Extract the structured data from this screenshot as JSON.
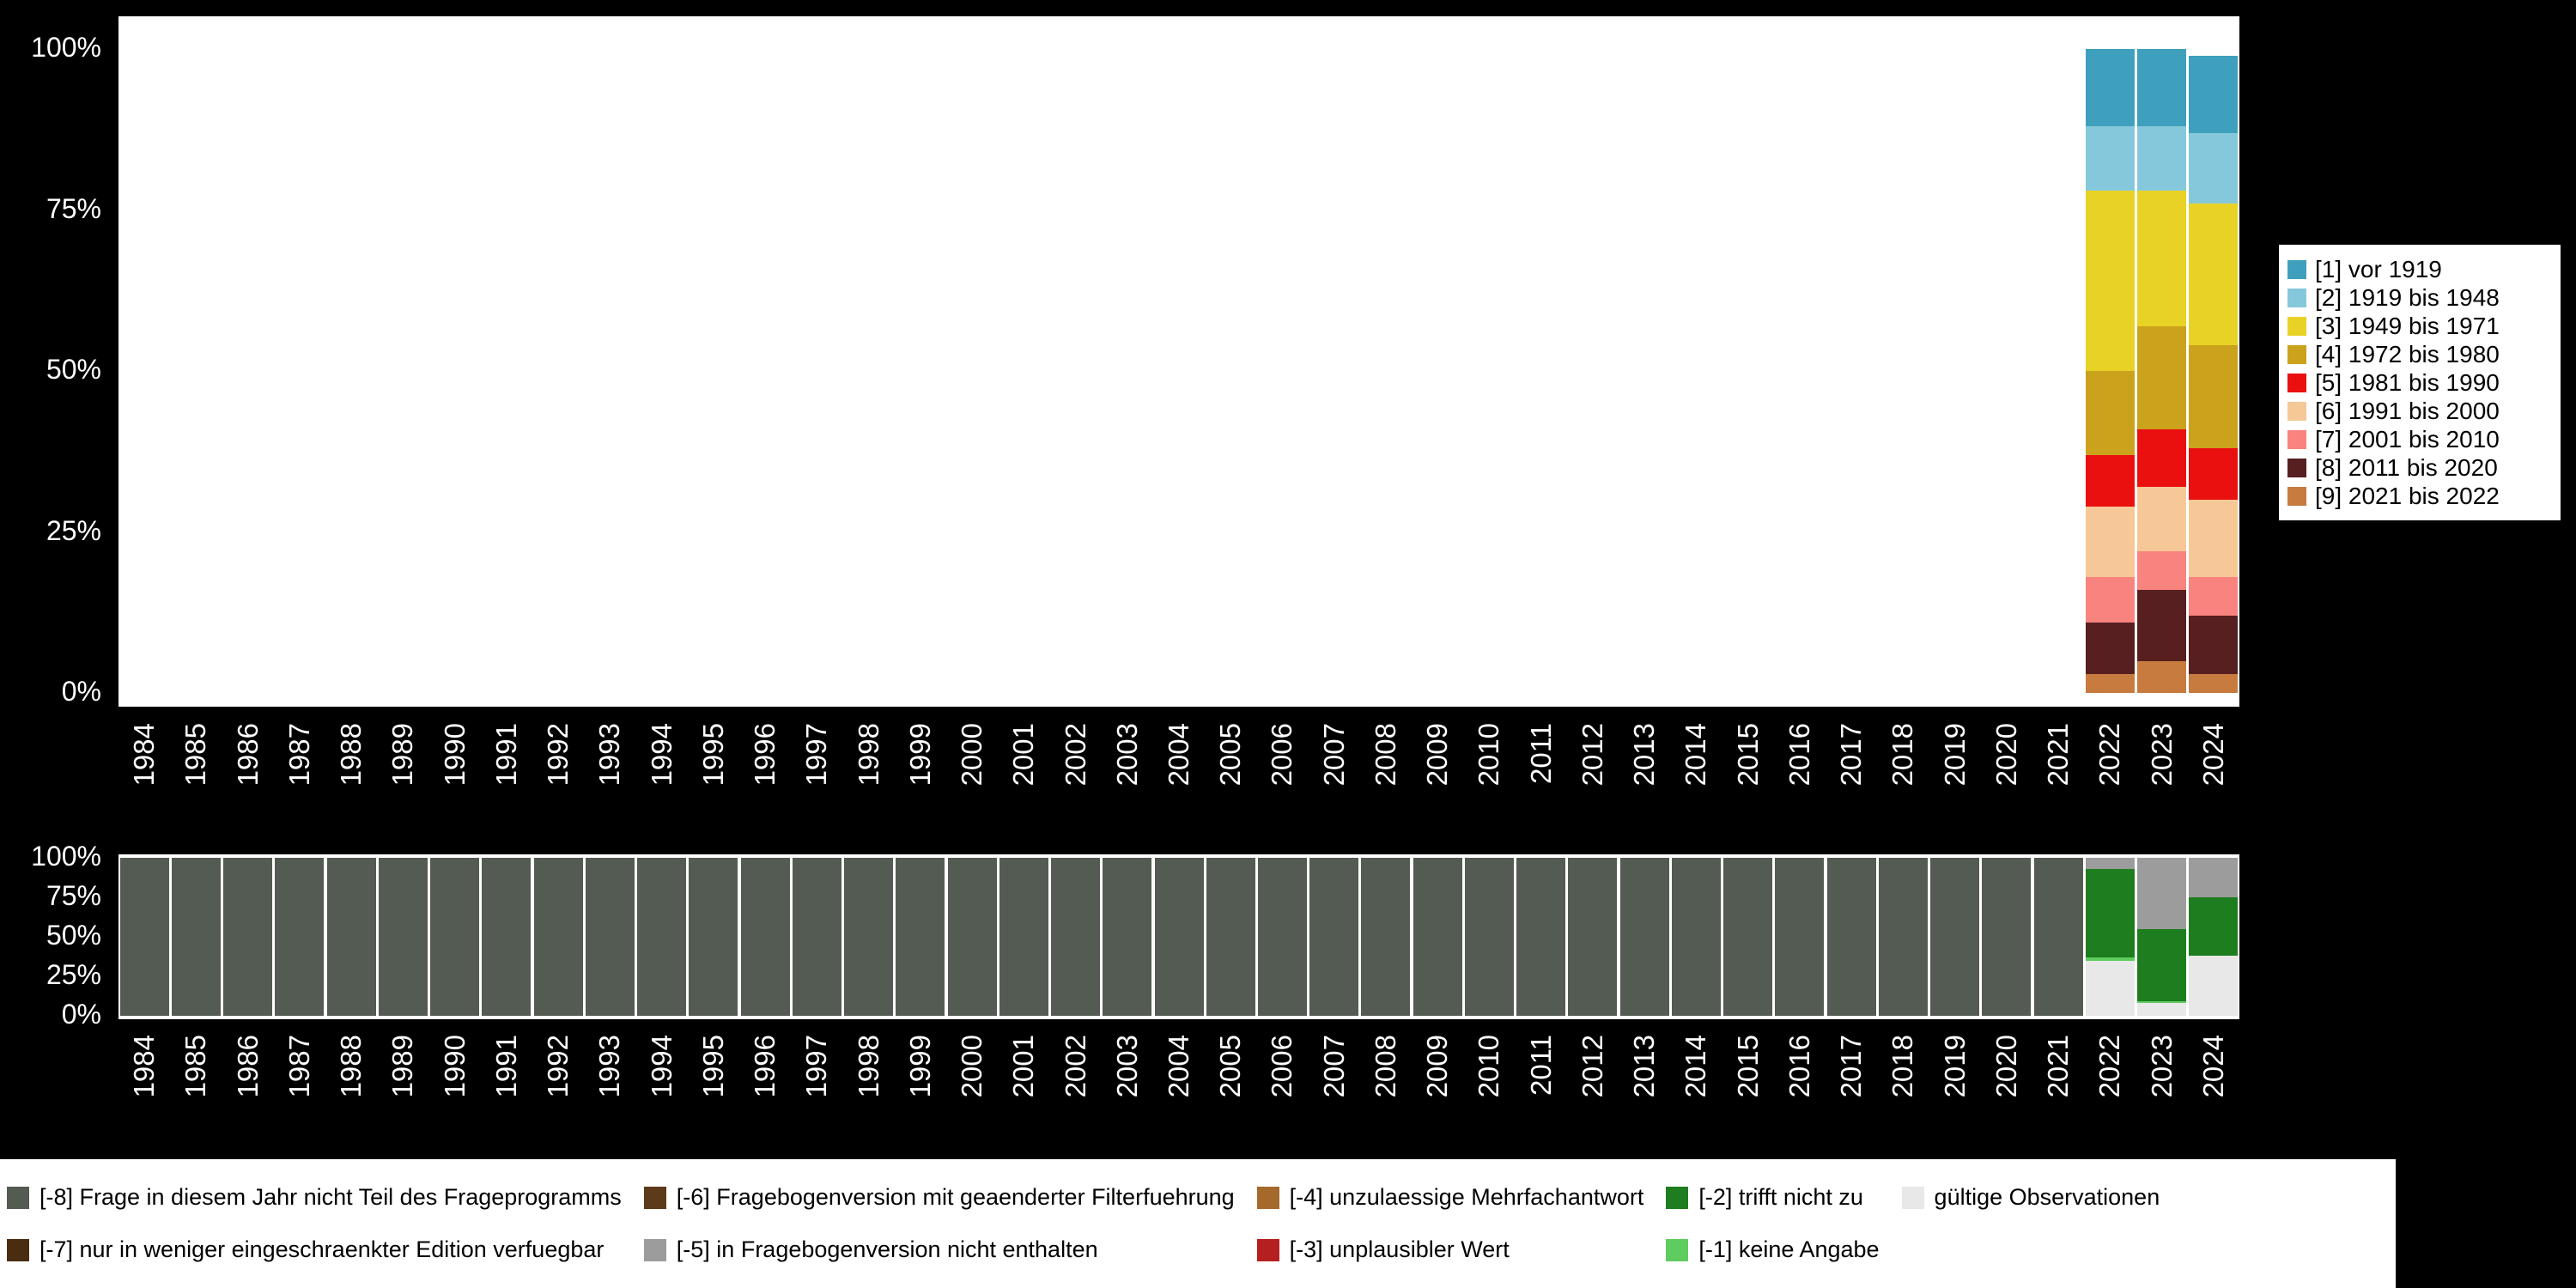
{
  "page": {
    "background": "#000000",
    "plot_background": "#ffffff",
    "axis_text_color": "#ffffff"
  },
  "chart_data": [
    {
      "id": "category-distribution",
      "type": "bar",
      "stacked": true,
      "orientation": "vertical",
      "legend_position": "right",
      "grid": false,
      "ylim": [
        0,
        100
      ],
      "y_ticks": [
        "0%",
        "25%",
        "50%",
        "75%",
        "100%"
      ],
      "x_years": [
        1984,
        1985,
        1986,
        1987,
        1988,
        1989,
        1990,
        1991,
        1992,
        1993,
        1994,
        1995,
        1996,
        1997,
        1998,
        1999,
        2000,
        2001,
        2002,
        2003,
        2004,
        2005,
        2006,
        2007,
        2008,
        2009,
        2010,
        2011,
        2012,
        2013,
        2014,
        2015,
        2016,
        2017,
        2018,
        2019,
        2020,
        2021,
        2022,
        2023,
        2024
      ],
      "stack_order": "bottom-to-top",
      "series": [
        {
          "name": "[9] 2021 bis 2022",
          "color": "#c77b3f",
          "values_by_year": {
            "2022": 3,
            "2023": 5,
            "2024": 3
          }
        },
        {
          "name": "[8] 2011 bis 2020",
          "color": "#571f20",
          "values_by_year": {
            "2022": 8,
            "2023": 11,
            "2024": 9
          }
        },
        {
          "name": "[7] 2001 bis 2010",
          "color": "#f9837e",
          "values_by_year": {
            "2022": 7,
            "2023": 6,
            "2024": 6
          }
        },
        {
          "name": "[6] 1991 bis 2000",
          "color": "#f6c897",
          "values_by_year": {
            "2022": 11,
            "2023": 10,
            "2024": 12
          }
        },
        {
          "name": "[5] 1981 bis 1990",
          "color": "#ea1010",
          "values_by_year": {
            "2022": 8,
            "2023": 9,
            "2024": 8
          }
        },
        {
          "name": "[4] 1972 bis 1980",
          "color": "#cba21c",
          "values_by_year": {
            "2022": 13,
            "2023": 16,
            "2024": 16
          }
        },
        {
          "name": "[3] 1949 bis 1971",
          "color": "#e9d226",
          "values_by_year": {
            "2022": 28,
            "2023": 21,
            "2024": 22
          }
        },
        {
          "name": "[2] 1919 bis 1948",
          "color": "#85c8dc",
          "values_by_year": {
            "2022": 10,
            "2023": 10,
            "2024": 11
          }
        },
        {
          "name": "[1] vor 1919",
          "color": "#3fa0bd",
          "values_by_year": {
            "2022": 12,
            "2023": 12,
            "2024": 12
          }
        }
      ]
    },
    {
      "id": "missing-values-distribution",
      "type": "bar",
      "stacked": true,
      "orientation": "vertical",
      "grid": false,
      "ylim": [
        0,
        100
      ],
      "y_ticks": [
        "0%",
        "25%",
        "50%",
        "75%",
        "100%"
      ],
      "x_years": [
        1984,
        1985,
        1986,
        1987,
        1988,
        1989,
        1990,
        1991,
        1992,
        1993,
        1994,
        1995,
        1996,
        1997,
        1998,
        1999,
        2000,
        2001,
        2002,
        2003,
        2004,
        2005,
        2006,
        2007,
        2008,
        2009,
        2010,
        2011,
        2012,
        2013,
        2014,
        2015,
        2016,
        2017,
        2018,
        2019,
        2020,
        2021,
        2022,
        2023,
        2024
      ],
      "stack_order": "bottom-to-top",
      "series": [
        {
          "name": "gültige Observationen",
          "color": "#e8e8e8",
          "values_by_year": {
            "2022": 35,
            "2023": 8,
            "2024": 38
          }
        },
        {
          "name": "[-1] keine Angabe",
          "color": "#5ecc5e",
          "values_by_year": {
            "2022": 2,
            "2023": 1,
            "2024": 0
          }
        },
        {
          "name": "[-2] trifft nicht zu",
          "color": "#1e7d1e",
          "values_by_year": {
            "2022": 56,
            "2023": 46,
            "2024": 37
          }
        },
        {
          "name": "[-5] in Fragebogenversion nicht enthalten",
          "color": "#9c9c9c",
          "values_by_year": {
            "2022": 7,
            "2023": 45,
            "2024": 25
          }
        },
        {
          "name": "[-8] Frage in diesem Jahr nicht Teil des Frageprogramms",
          "color": "#545b52",
          "value": 100,
          "year_range": [
            1984,
            2021
          ]
        }
      ]
    }
  ],
  "legend_bottom": {
    "items": [
      {
        "label": "[-8] Frage in diesem Jahr nicht Teil des Frageprogramms",
        "color": "#545b52"
      },
      {
        "label": "[-7] nur in weniger eingeschraenkter Edition verfuegbar",
        "color": "#4a2c10"
      },
      {
        "label": "[-6] Fragebogenversion mit geaenderter Filterfuehrung",
        "color": "#5d3a1a"
      },
      {
        "label": "[-5] in Fragebogenversion nicht enthalten",
        "color": "#9c9c9c"
      },
      {
        "label": "[-4] unzulaessige Mehrfachantwort",
        "color": "#a5692c"
      },
      {
        "label": "[-3] unplausibler Wert",
        "color": "#b51f1f"
      },
      {
        "label": "[-2] trifft nicht zu",
        "color": "#1e7d1e"
      },
      {
        "label": "[-1] keine Angabe",
        "color": "#5ecc5e"
      },
      {
        "label": "gültige Observationen",
        "color": "#e8e8e8"
      }
    ]
  }
}
